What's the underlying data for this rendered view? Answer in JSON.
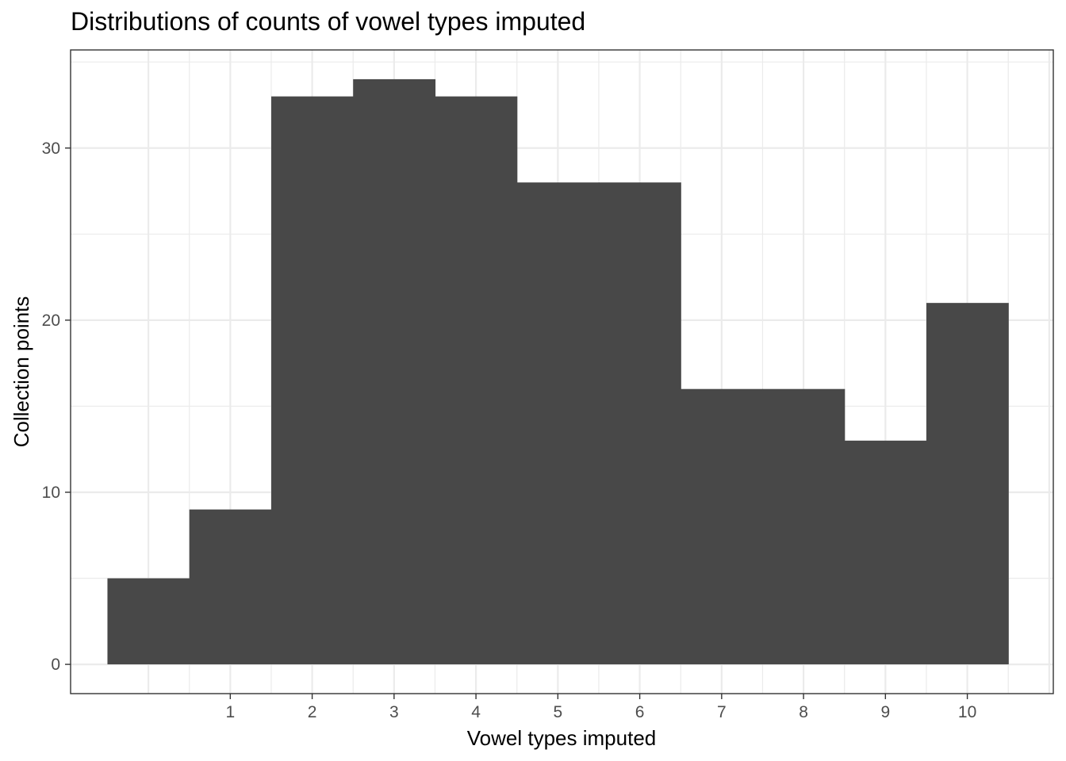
{
  "chart_data": {
    "type": "bar",
    "title": "Distributions of counts of vowel types imputed",
    "xlabel": "Vowel types imputed",
    "ylabel": "Collection points",
    "categories": [
      "0",
      "1",
      "2",
      "3",
      "4",
      "5",
      "6",
      "7",
      "8",
      "9",
      "10"
    ],
    "values": [
      5,
      9,
      33,
      34,
      33,
      28,
      28,
      16,
      16,
      13,
      21
    ],
    "x_ticks": [
      "1",
      "2",
      "3",
      "4",
      "5",
      "6",
      "7",
      "8",
      "9",
      "10"
    ],
    "y_ticks": [
      "0",
      "10",
      "20",
      "30"
    ],
    "xlim": [
      -0.95,
      11.05
    ],
    "ylim": [
      -1.7,
      35.7
    ],
    "bar_color": "#484848",
    "grid": true,
    "theme": "bw",
    "legend": "none"
  }
}
